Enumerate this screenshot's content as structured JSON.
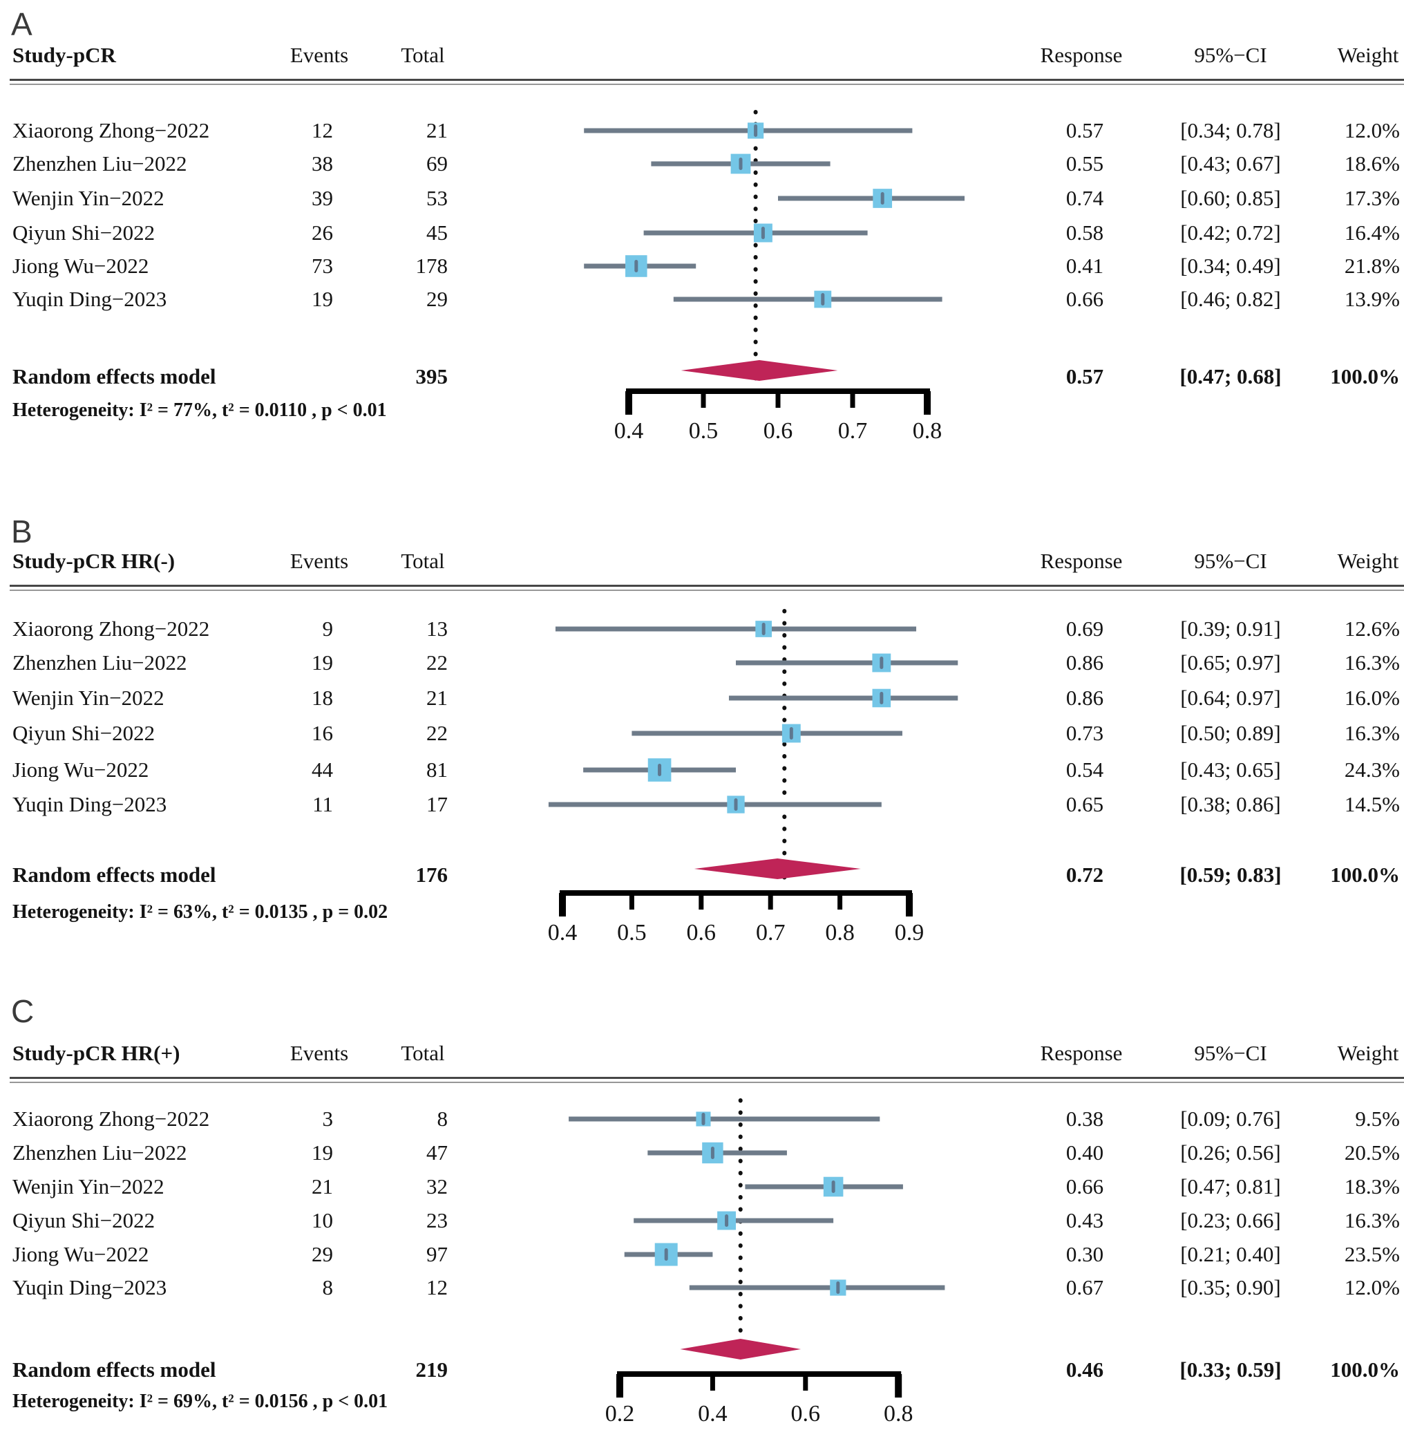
{
  "colors": {
    "square": "#74C6E7",
    "marker": "#5E7890",
    "ci_line": "#6E7B89",
    "diamond": "#BF2457",
    "axis": "#000000",
    "dotted_line": "#111111",
    "text": "#141414"
  },
  "chart_data": {
    "type": "forest_plot",
    "columns": {
      "events": "Events",
      "total": "Total",
      "response": "Response",
      "ci": "95%−CI",
      "weight": "Weight"
    },
    "panels": [
      {
        "label": "A",
        "study_header": "Study-pCR",
        "studies": [
          {
            "name": "Xiaorong Zhong−2022",
            "events": "12",
            "total": "21",
            "response": 0.57,
            "response_text": "0.57",
            "ci_low": 0.34,
            "ci_high": 0.78,
            "ci_text": "[0.34; 0.78]",
            "weight": 12.0,
            "weight_text": "12.0%"
          },
          {
            "name": "Zhenzhen Liu−2022",
            "events": "38",
            "total": "69",
            "response": 0.55,
            "response_text": "0.55",
            "ci_low": 0.43,
            "ci_high": 0.67,
            "ci_text": "[0.43; 0.67]",
            "weight": 18.6,
            "weight_text": "18.6%"
          },
          {
            "name": "Wenjin Yin−2022",
            "events": "39",
            "total": "53",
            "response": 0.74,
            "response_text": "0.74",
            "ci_low": 0.6,
            "ci_high": 0.85,
            "ci_text": "[0.60; 0.85]",
            "weight": 17.3,
            "weight_text": "17.3%"
          },
          {
            "name": "Qiyun Shi−2022",
            "events": "26",
            "total": "45",
            "response": 0.58,
            "response_text": "0.58",
            "ci_low": 0.42,
            "ci_high": 0.72,
            "ci_text": "[0.42; 0.72]",
            "weight": 16.4,
            "weight_text": "16.4%"
          },
          {
            "name": "Jiong Wu−2022",
            "events": "73",
            "total": "178",
            "response": 0.41,
            "response_text": "0.41",
            "ci_low": 0.34,
            "ci_high": 0.49,
            "ci_text": "[0.34; 0.49]",
            "weight": 21.8,
            "weight_text": "21.8%"
          },
          {
            "name": "Yuqin Ding−2023",
            "events": "19",
            "total": "29",
            "response": 0.66,
            "response_text": "0.66",
            "ci_low": 0.46,
            "ci_high": 0.82,
            "ci_text": "[0.46; 0.82]",
            "weight": 13.9,
            "weight_text": "13.9%"
          }
        ],
        "pooled": {
          "label": "Random effects model",
          "total": "395",
          "response": 0.57,
          "response_text": "0.57",
          "ci_low": 0.47,
          "ci_high": 0.68,
          "ci_text": "[0.47; 0.68]",
          "weight_text": "100.0%"
        },
        "heterogeneity": "Heterogeneity:  I² = 77%, t² = 0.0110 , p < 0.01",
        "axis": {
          "min": 0.4,
          "max": 0.8,
          "ticks": [
            0.4,
            0.5,
            0.6,
            0.7,
            0.8
          ],
          "tick_labels": [
            "0.4",
            "0.5",
            "0.6",
            "0.7",
            "0.8"
          ]
        }
      },
      {
        "label": "B",
        "study_header": "Study-pCR HR(-)",
        "studies": [
          {
            "name": "Xiaorong Zhong−2022",
            "events": "9",
            "total": "13",
            "response": 0.69,
            "response_text": "0.69",
            "ci_low": 0.39,
            "ci_high": 0.91,
            "ci_text": "[0.39; 0.91]",
            "weight": 12.6,
            "weight_text": "12.6%"
          },
          {
            "name": "Zhenzhen Liu−2022",
            "events": "19",
            "total": "22",
            "response": 0.86,
            "response_text": "0.86",
            "ci_low": 0.65,
            "ci_high": 0.97,
            "ci_text": "[0.65; 0.97]",
            "weight": 16.3,
            "weight_text": "16.3%"
          },
          {
            "name": "Wenjin Yin−2022",
            "events": "18",
            "total": "21",
            "response": 0.86,
            "response_text": "0.86",
            "ci_low": 0.64,
            "ci_high": 0.97,
            "ci_text": "[0.64; 0.97]",
            "weight": 16.0,
            "weight_text": "16.0%"
          },
          {
            "name": "Qiyun Shi−2022",
            "events": "16",
            "total": "22",
            "response": 0.73,
            "response_text": "0.73",
            "ci_low": 0.5,
            "ci_high": 0.89,
            "ci_text": "[0.50; 0.89]",
            "weight": 16.3,
            "weight_text": "16.3%"
          },
          {
            "name": "Jiong Wu−2022",
            "events": "44",
            "total": "81",
            "response": 0.54,
            "response_text": "0.54",
            "ci_low": 0.43,
            "ci_high": 0.65,
            "ci_text": "[0.43; 0.65]",
            "weight": 24.3,
            "weight_text": "24.3%"
          },
          {
            "name": "Yuqin Ding−2023",
            "events": "11",
            "total": "17",
            "response": 0.65,
            "response_text": "0.65",
            "ci_low": 0.38,
            "ci_high": 0.86,
            "ci_text": "[0.38; 0.86]",
            "weight": 14.5,
            "weight_text": "14.5%"
          }
        ],
        "pooled": {
          "label": "Random effects model",
          "total": "176",
          "response": 0.72,
          "response_text": "0.72",
          "ci_low": 0.59,
          "ci_high": 0.83,
          "ci_text": "[0.59; 0.83]",
          "weight_text": "100.0%"
        },
        "heterogeneity": "Heterogeneity:  I² = 63%, t² = 0.0135 , p = 0.02",
        "axis": {
          "min": 0.4,
          "max": 0.9,
          "ticks": [
            0.4,
            0.5,
            0.6,
            0.7,
            0.8,
            0.9
          ],
          "tick_labels": [
            "0.4",
            "0.5",
            "0.6",
            "0.7",
            "0.8",
            "0.9"
          ]
        }
      },
      {
        "label": "C",
        "study_header": "Study-pCR HR(+)",
        "studies": [
          {
            "name": "Xiaorong Zhong−2022",
            "events": "3",
            "total": "8",
            "response": 0.38,
            "response_text": "0.38",
            "ci_low": 0.09,
            "ci_high": 0.76,
            "ci_text": "[0.09; 0.76]",
            "weight": 9.5,
            "weight_text": "9.5%"
          },
          {
            "name": "Zhenzhen Liu−2022",
            "events": "19",
            "total": "47",
            "response": 0.4,
            "response_text": "0.40",
            "ci_low": 0.26,
            "ci_high": 0.56,
            "ci_text": "[0.26; 0.56]",
            "weight": 20.5,
            "weight_text": "20.5%"
          },
          {
            "name": "Wenjin Yin−2022",
            "events": "21",
            "total": "32",
            "response": 0.66,
            "response_text": "0.66",
            "ci_low": 0.47,
            "ci_high": 0.81,
            "ci_text": "[0.47; 0.81]",
            "weight": 18.3,
            "weight_text": "18.3%"
          },
          {
            "name": "Qiyun Shi−2022",
            "events": "10",
            "total": "23",
            "response": 0.43,
            "response_text": "0.43",
            "ci_low": 0.23,
            "ci_high": 0.66,
            "ci_text": "[0.23; 0.66]",
            "weight": 16.3,
            "weight_text": "16.3%"
          },
          {
            "name": "Jiong Wu−2022",
            "events": "29",
            "total": "97",
            "response": 0.3,
            "response_text": "0.30",
            "ci_low": 0.21,
            "ci_high": 0.4,
            "ci_text": "[0.21; 0.40]",
            "weight": 23.5,
            "weight_text": "23.5%"
          },
          {
            "name": "Yuqin Ding−2023",
            "events": "8",
            "total": "12",
            "response": 0.67,
            "response_text": "0.67",
            "ci_low": 0.35,
            "ci_high": 0.9,
            "ci_text": "[0.35; 0.90]",
            "weight": 12.0,
            "weight_text": "12.0%"
          }
        ],
        "pooled": {
          "label": "Random effects model",
          "total": "219",
          "response": 0.46,
          "response_text": "0.46",
          "ci_low": 0.33,
          "ci_high": 0.59,
          "ci_text": "[0.33; 0.59]",
          "weight_text": "100.0%"
        },
        "heterogeneity": "Heterogeneity:  I² = 69%, t² = 0.0156 , p < 0.01",
        "axis": {
          "min": 0.2,
          "max": 0.8,
          "ticks": [
            0.2,
            0.4,
            0.6,
            0.8
          ],
          "tick_labels": [
            "0.2",
            "0.4",
            "0.6",
            "0.8"
          ]
        }
      }
    ]
  }
}
